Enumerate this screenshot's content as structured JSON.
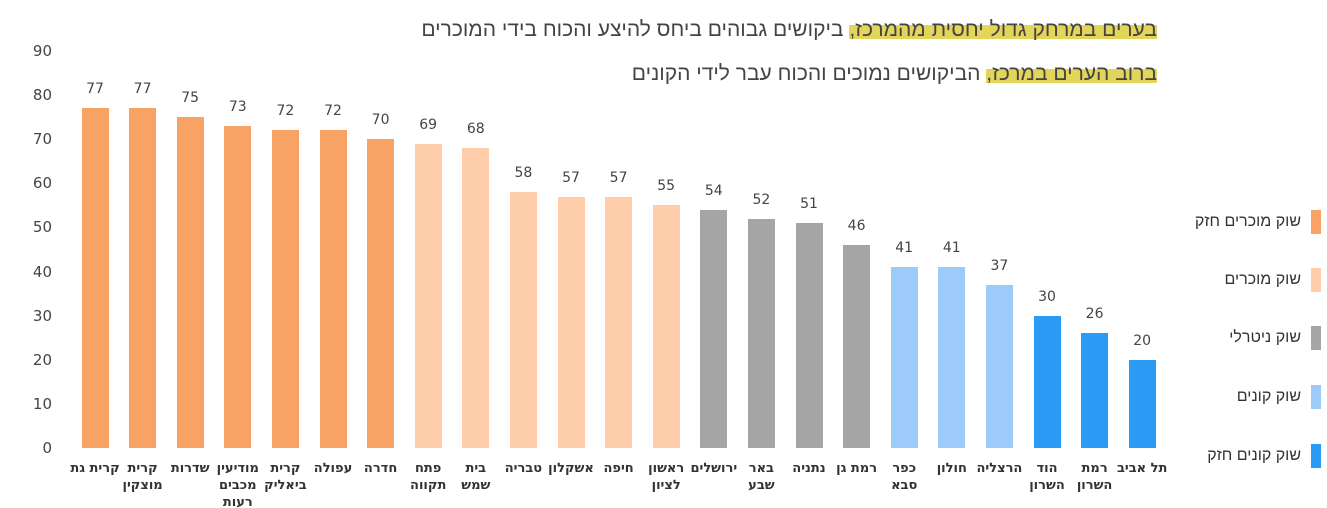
{
  "title_lines": [
    {
      "highlight": "בערים במרחק גדול יחסית מהמרכז,",
      "rest": " ביקושים גבוהים ביחס להיצע והכוח בידי המוכרים"
    },
    {
      "highlight": "ברוב הערים במרכז,",
      "rest": " הביקושים נמוכים והכוח עבר לידי הקונים"
    }
  ],
  "chart_data": {
    "type": "bar",
    "ylim": [
      0,
      90
    ],
    "yticks": [
      0,
      10,
      20,
      30,
      40,
      50,
      60,
      70,
      80,
      90
    ],
    "grid": false,
    "legend_placement": "right",
    "categories": [
      "קרית גת",
      "קרית\nמוצקין",
      "שדרות",
      "מודיעין\nמכבים\nרעות",
      "קרית\nביאליק",
      "עפולה",
      "חדרה",
      "פתח\nתקווה",
      "בית\nשמש",
      "טבריה",
      "אשקלון",
      "חיפה",
      "ראשון\nלציון",
      "ירושלים",
      "באר\nשבע",
      "נתניה",
      "רמת גן",
      "כפר\nסבא",
      "חולון",
      "הרצליה",
      "הוד\nהשרון",
      "רמת\nהשרון",
      "תל אביב"
    ],
    "values": [
      77,
      77,
      75,
      73,
      72,
      72,
      70,
      69,
      68,
      58,
      57,
      57,
      55,
      54,
      52,
      51,
      46,
      41,
      41,
      37,
      30,
      26,
      20
    ],
    "groups": [
      0,
      0,
      0,
      0,
      0,
      0,
      0,
      1,
      1,
      1,
      1,
      1,
      1,
      2,
      2,
      2,
      2,
      3,
      3,
      3,
      4,
      4,
      4
    ],
    "legend": [
      {
        "name": "שוק מוכרים חזק",
        "color": "#F9A266"
      },
      {
        "name": "שוק מוכרים",
        "color": "#FDCEA9"
      },
      {
        "name": "שוק ניטרלי",
        "color": "#A5A5A5"
      },
      {
        "name": "שוק קונים",
        "color": "#9CCBFA"
      },
      {
        "name": "שוק קונים חזק",
        "color": "#2B9BF6"
      }
    ]
  }
}
